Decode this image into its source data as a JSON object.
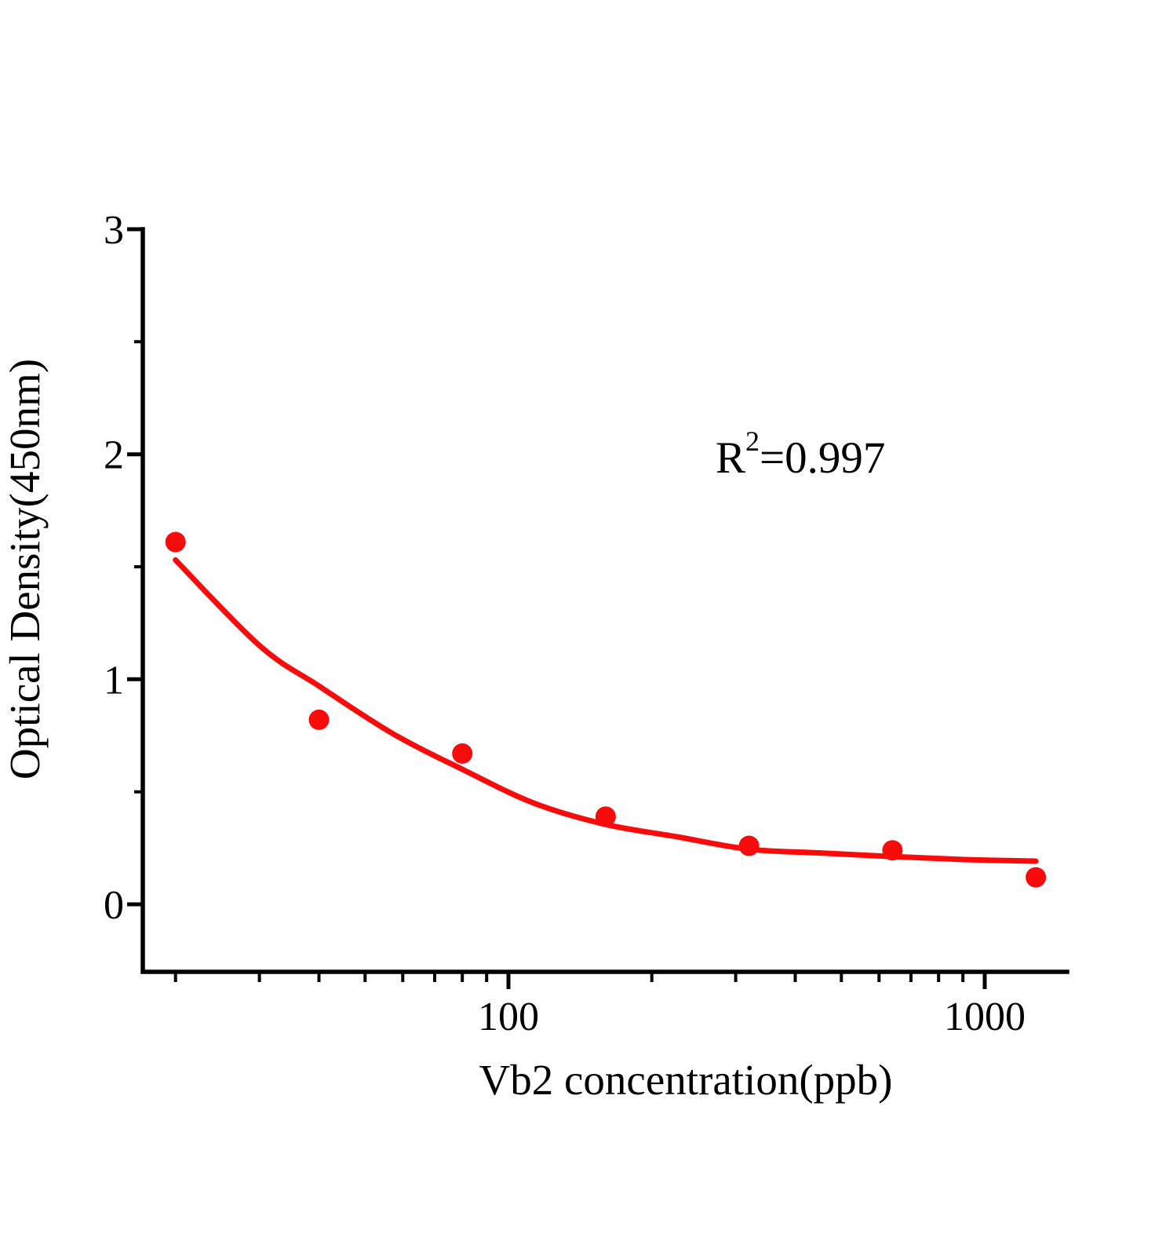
{
  "figure": {
    "background": "#ffffff",
    "series_color": "#f90b0b",
    "axis_color": "#000000",
    "annotation": {
      "base": "R",
      "exponent": "2",
      "rest": "=0.997"
    }
  },
  "chart_data": {
    "type": "scatter",
    "title": "",
    "xlabel": "Vb2 concentration(ppb)",
    "ylabel": "Optical Density(450nm)",
    "x_scale": "log10",
    "xlim": [
      17,
      1490
    ],
    "ylim": [
      -0.3,
      3
    ],
    "grid": false,
    "legend": "none",
    "x_major_ticks": [
      100,
      1000
    ],
    "x_major_tick_labels": [
      "100",
      "1000"
    ],
    "x_minor_ticks": [
      20,
      30,
      40,
      50,
      60,
      70,
      80,
      90,
      200,
      300,
      400,
      500,
      600,
      700,
      800,
      900
    ],
    "y_major_ticks": [
      0,
      1,
      2,
      3
    ],
    "y_major_tick_labels": [
      "0",
      "1",
      "2",
      "3"
    ],
    "y_minor_ticks": [
      0.5,
      1.5,
      2.5
    ],
    "r_squared": 0.997,
    "r_squared_text": "R²=0.997",
    "points": [
      {
        "concentration_ppb": 20,
        "od": 1.61
      },
      {
        "concentration_ppb": 40,
        "od": 0.82
      },
      {
        "concentration_ppb": 80,
        "od": 0.67
      },
      {
        "concentration_ppb": 160,
        "od": 0.39
      },
      {
        "concentration_ppb": 320,
        "od": 0.26
      },
      {
        "concentration_ppb": 640,
        "od": 0.24
      },
      {
        "concentration_ppb": 1280,
        "od": 0.12
      }
    ],
    "fit_curve": [
      {
        "concentration_ppb": 20,
        "od": 1.53
      },
      {
        "concentration_ppb": 30,
        "od": 1.15
      },
      {
        "concentration_ppb": 40,
        "od": 0.97
      },
      {
        "concentration_ppb": 57,
        "od": 0.76
      },
      {
        "concentration_ppb": 80,
        "od": 0.6
      },
      {
        "concentration_ppb": 113,
        "od": 0.45
      },
      {
        "concentration_ppb": 160,
        "od": 0.355
      },
      {
        "concentration_ppb": 226,
        "od": 0.3
      },
      {
        "concentration_ppb": 320,
        "od": 0.245
      },
      {
        "concentration_ppb": 453,
        "od": 0.228
      },
      {
        "concentration_ppb": 640,
        "od": 0.212
      },
      {
        "concentration_ppb": 905,
        "od": 0.199
      },
      {
        "concentration_ppb": 1280,
        "od": 0.192
      }
    ]
  }
}
